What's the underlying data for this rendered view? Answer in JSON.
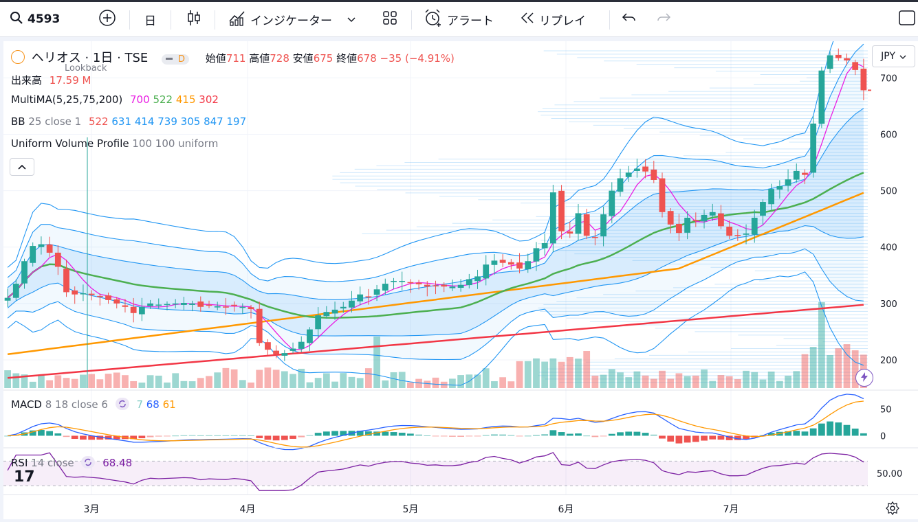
{
  "toolbar": {
    "symbol": "4593",
    "interval": "日",
    "indicators_label": "インジケーター",
    "alert_label": "アラート",
    "replay_label": "リプレイ"
  },
  "header": {
    "title": "ヘリオス · 1日 · TSE",
    "badge": "D",
    "open_label": "始値",
    "open": "711",
    "high_label": "高値",
    "high": "728",
    "low_label": "安値",
    "low": "675",
    "close_label": "終値",
    "close": "678",
    "change": "−35 (−4.91%)",
    "lookback": "Lookback"
  },
  "indicators": {
    "volume": {
      "label": "出来高",
      "value": "17.59 M"
    },
    "multima": {
      "label": "MultiMA(5,25,75,200)",
      "v1": "700",
      "v2": "522",
      "v3": "415",
      "v4": "302"
    },
    "bb": {
      "label": "BB",
      "params": "25 close 1",
      "v1": "522",
      "v2": "631",
      "v3": "414",
      "v4": "739",
      "v5": "305",
      "v6": "847",
      "v7": "197"
    },
    "uvp": {
      "label": "Uniform Volume Profile",
      "params": "100 100 uniform"
    },
    "macd": {
      "label": "MACD",
      "params": "8 18 close 6",
      "v1": "7",
      "v2": "68",
      "v3": "61"
    },
    "rsi": {
      "label": "RSI",
      "params": "14 close",
      "value": "68.48"
    }
  },
  "currency": "JPY",
  "price_axis": [
    "700",
    "600",
    "500",
    "400",
    "300",
    "200"
  ],
  "macd_axis": [
    "50",
    "0"
  ],
  "rsi_axis": [
    "50.00"
  ],
  "time_axis": [
    "3月",
    "4月",
    "5月",
    "6月",
    "7月"
  ],
  "colors": {
    "up": "#26a69a",
    "down": "#ef5350",
    "ma5": "#e91ee3",
    "ma25": "#4caf50",
    "ma75": "#ff9800",
    "ma200": "#f23645",
    "bb": "#2196f3"
  },
  "chart_data": {
    "type": "candlestick",
    "symbol": "ヘリオス",
    "ylim": [
      150,
      765
    ],
    "closes": [
      310,
      335,
      375,
      402,
      405,
      390,
      365,
      320,
      316,
      318,
      315,
      312,
      306,
      300,
      294,
      283,
      294,
      300,
      298,
      299,
      300,
      301,
      300,
      294,
      296,
      295,
      294,
      296,
      294,
      290,
      230,
      218,
      210,
      212,
      220,
      232,
      254,
      279,
      285,
      289,
      294,
      305,
      316,
      312,
      325,
      335,
      340,
      340,
      336,
      334,
      330,
      332,
      330,
      330,
      333,
      343,
      348,
      369,
      376,
      372,
      369,
      362,
      375,
      398,
      407,
      497,
      428,
      424,
      460,
      420,
      417,
      458,
      500,
      522,
      532,
      539,
      534,
      519,
      462,
      440,
      425,
      452,
      447,
      457,
      462,
      437,
      420,
      420,
      424,
      452,
      480,
      503,
      508,
      520,
      535,
      528,
      619,
      713,
      740,
      735,
      731,
      714,
      678
    ]
  },
  "macd_chart": {
    "ylim": [
      -20,
      80
    ]
  },
  "rsi_chart": {
    "ylim": [
      20,
      85
    ]
  }
}
